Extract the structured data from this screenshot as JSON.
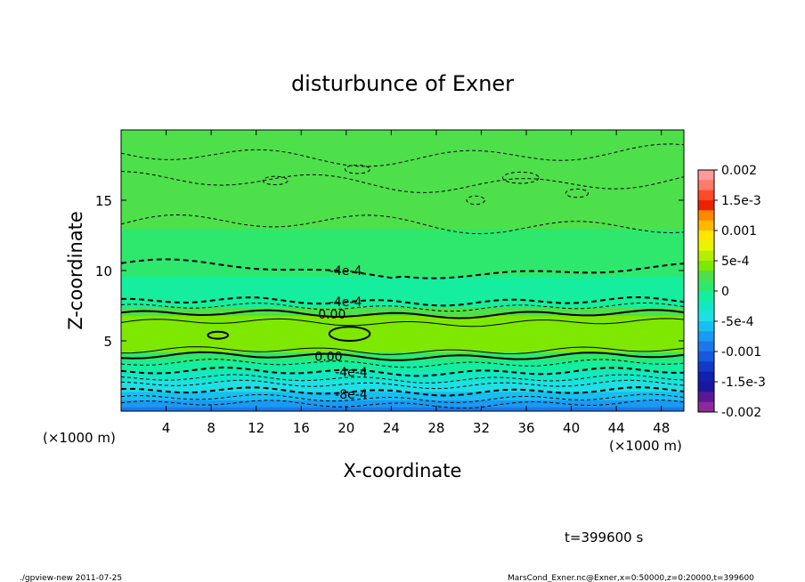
{
  "chart_data": {
    "type": "heatmap",
    "title": "disturbunce of Exner",
    "xlabel": "X-coordinate",
    "ylabel": "Z-coordinate",
    "x_unit_left": "(×1000 m)",
    "x_unit_right": "(×1000 m)",
    "xlim": [
      0,
      50
    ],
    "ylim": [
      0,
      20
    ],
    "x_ticks": [
      "4",
      "8",
      "12",
      "16",
      "20",
      "24",
      "28",
      "32",
      "36",
      "40",
      "44",
      "48"
    ],
    "x_tick_values": [
      4,
      8,
      12,
      16,
      20,
      24,
      28,
      32,
      36,
      40,
      44,
      48
    ],
    "y_ticks": [
      "5",
      "10",
      "15"
    ],
    "y_tick_values": [
      5,
      10,
      15
    ],
    "colorbar": {
      "labels": [
        "0.002",
        "1.5e-3",
        "0.001",
        "5e-4",
        "0",
        "-5e-4",
        "-0.001",
        "-1.5e-3",
        "-0.002"
      ],
      "values": [
        0.002,
        0.0015,
        0.001,
        0.0005,
        0,
        -0.0005,
        -0.001,
        -0.0015,
        -0.002
      ],
      "colors": [
        "#ff9a9a",
        "#ff7a6a",
        "#ff4a2a",
        "#ee2200",
        "#ff8800",
        "#ffb800",
        "#ffe600",
        "#e8f400",
        "#b4ee00",
        "#7ee800",
        "#4ee04a",
        "#2ee86e",
        "#14ee9e",
        "#12e8c4",
        "#1ee0e4",
        "#18bef0",
        "#1a9af2",
        "#1a78ea",
        "#1658e0",
        "#1238c8",
        "#1020b0",
        "#1a18a0",
        "#5a1898",
        "#8a2a9a"
      ]
    },
    "bands": [
      {
        "z": [
          0.0,
          0.3
        ],
        "color": "#1a78ea"
      },
      {
        "z": [
          0.3,
          0.8
        ],
        "color": "#1a9af2"
      },
      {
        "z": [
          0.8,
          1.4
        ],
        "color": "#18bef0"
      },
      {
        "z": [
          1.4,
          2.2
        ],
        "color": "#1ee0e4"
      },
      {
        "z": [
          2.2,
          2.9
        ],
        "color": "#12e8c4"
      },
      {
        "z": [
          2.9,
          3.6
        ],
        "color": "#14ee9e"
      },
      {
        "z": [
          3.6,
          4.2
        ],
        "color": "#2ee86e"
      },
      {
        "z": [
          4.2,
          6.8
        ],
        "color": "#7ee800"
      },
      {
        "z": [
          6.8,
          7.4
        ],
        "color": "#4ee04a"
      },
      {
        "z": [
          7.4,
          9.6
        ],
        "color": "#14ee9e"
      },
      {
        "z": [
          9.6,
          13.0
        ],
        "color": "#2ee86e"
      },
      {
        "z": [
          13.0,
          20.0
        ],
        "color": "#4ee04a"
      }
    ],
    "contour_labels": [
      {
        "text": "-4e-4",
        "x": 18.5,
        "z": 10.0
      },
      {
        "text": "-4e-4",
        "x": 18.5,
        "z": 7.8
      },
      {
        "text": "0.00",
        "x": 17.5,
        "z": 6.9
      },
      {
        "text": "0.00",
        "x": 17.2,
        "z": 3.9
      },
      {
        "text": "-4e-4",
        "x": 19.0,
        "z": 2.8
      },
      {
        "text": "-8e-4",
        "x": 19.0,
        "z": 1.2
      }
    ],
    "time_label": "t=399600 s"
  },
  "footer": {
    "left": "./gpview-new 2011-07-25",
    "right": "MarsCond_Exner.nc@Exner,x=0:50000,z=0:20000,t=399600"
  }
}
